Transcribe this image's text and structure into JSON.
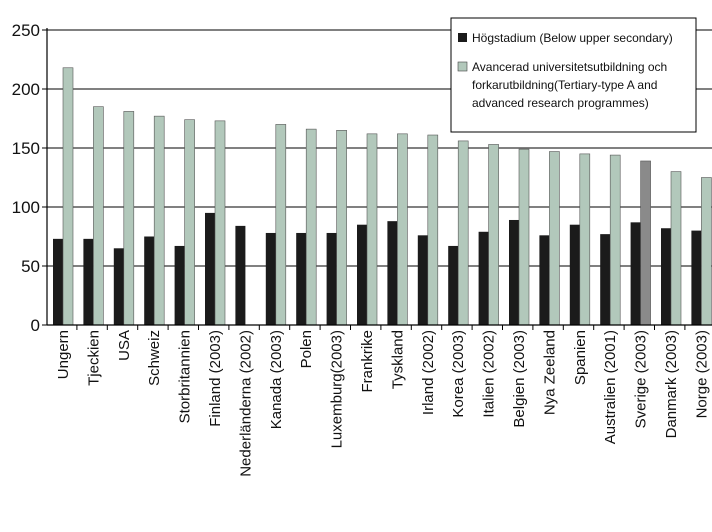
{
  "chart_data": {
    "type": "bar",
    "categories": [
      "Ungern",
      "Tjeckien",
      "USA",
      "Schweiz",
      "Storbritannien",
      "Finland (2003)",
      "Nederländerna (2002)",
      "Kanada (2003)",
      "Polen",
      "Luxemburg(2003)",
      "Frankrike",
      "Tyskland",
      "Irland (2002)",
      "Korea (2003)",
      "Italien (2002)",
      "Belgien (2003)",
      "Nya Zeeland",
      "Spanien",
      "Australien (2001)",
      "Sverige (2003)",
      "Danmark (2003)",
      "Norge (2003)"
    ],
    "series": [
      {
        "name": "Högstadium (Below upper secondary)",
        "values": [
          73,
          73,
          65,
          75,
          67,
          95,
          84,
          78,
          78,
          78,
          85,
          88,
          76,
          67,
          79,
          89,
          76,
          85,
          77,
          87,
          82,
          80
        ]
      },
      {
        "name": "Avancerad universitetsutbildning och forkarutbildning(Tertiary-type A and advanced research programmes)",
        "values": [
          218,
          185,
          181,
          177,
          174,
          173,
          null,
          170,
          166,
          165,
          162,
          162,
          161,
          156,
          153,
          149,
          147,
          145,
          144,
          139,
          130,
          125
        ]
      }
    ],
    "ylim": [
      0,
      250
    ],
    "yticks": [
      "0",
      "50",
      "100",
      "150",
      "200",
      "250"
    ],
    "highlight_category": "Sverige (2003)",
    "colors": {
      "series1": "#1b1b1b",
      "series2": "#b2c8bb",
      "highlight": "#8a8a8a",
      "grid": "#000000"
    },
    "grid": true,
    "legend": {
      "position": "top-right",
      "items": [
        {
          "label_lines": [
            "Högstadium (Below upper secondary)"
          ]
        },
        {
          "label_lines": [
            "Avancerad universitetsutbildning och",
            "forkarutbildning(Tertiary-type A and",
            "advanced research programmes)"
          ]
        }
      ]
    }
  }
}
